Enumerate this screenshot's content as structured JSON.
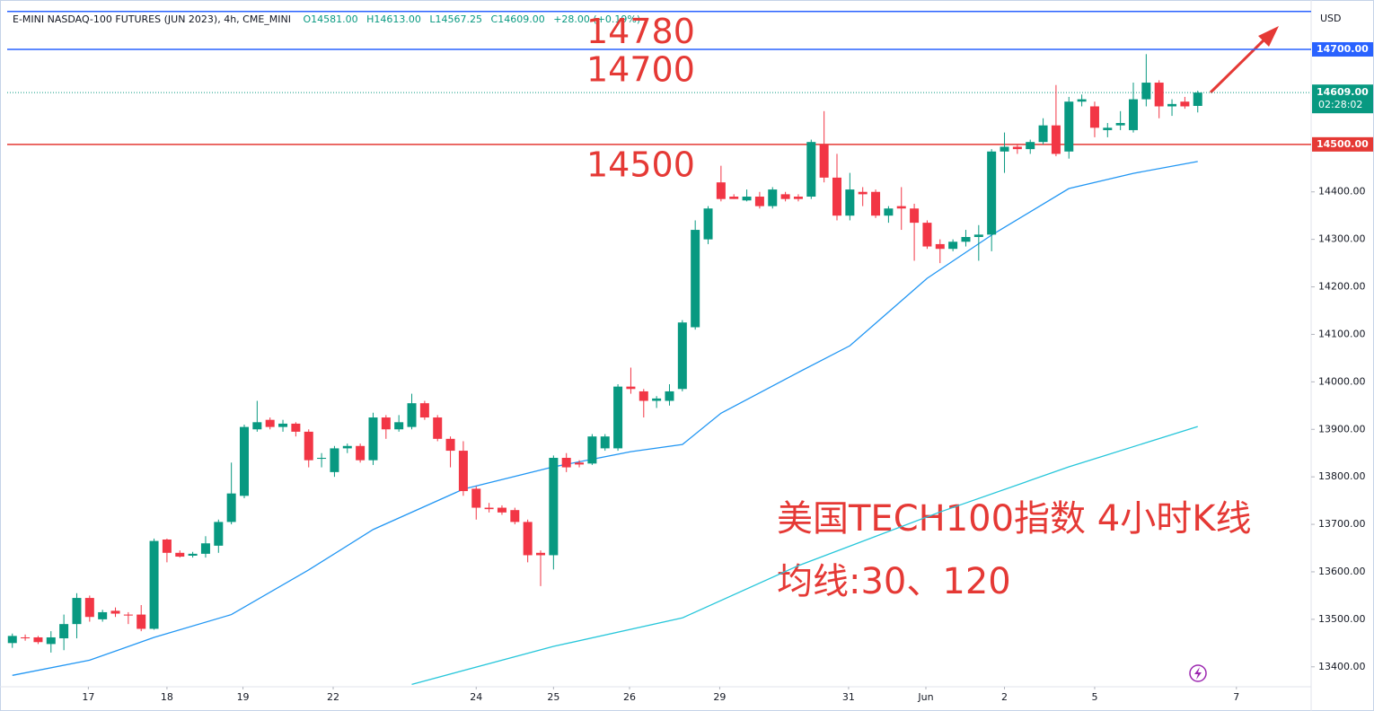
{
  "chart_data": {
    "type": "candlestick",
    "header": {
      "symbol": "E-MINI NASDAQ-100 FUTURES (JUN 2023), 4h, CME_MINI",
      "open": "O14581.00",
      "high": "H14613.00",
      "low": "L14567.25",
      "close": "C14609.00",
      "change": "+28.00 (+0.19%)"
    },
    "currency": "USD",
    "annotations": [
      "美国TECH100指数 4小时K线",
      "均线:30、120"
    ],
    "up_color": "#089981",
    "down_color": "#f23645",
    "xlim": [
      -0.4,
      100.8
    ],
    "ylim": [
      13358,
      14804
    ],
    "grid": false,
    "xticks": [
      {
        "value": 5.9,
        "label": "17"
      },
      {
        "value": 12,
        "label": "18"
      },
      {
        "value": 17.9,
        "label": "19"
      },
      {
        "value": 24.9,
        "label": "22"
      },
      {
        "value": 36,
        "label": "24"
      },
      {
        "value": 42,
        "label": "25"
      },
      {
        "value": 47.9,
        "label": "26"
      },
      {
        "value": 54.9,
        "label": "29"
      },
      {
        "value": 64.9,
        "label": "31"
      },
      {
        "value": 70.9,
        "label": "Jun"
      },
      {
        "value": 77,
        "label": "2"
      },
      {
        "value": 84,
        "label": "5"
      },
      {
        "value": 95,
        "label": "7"
      }
    ],
    "yticks": [
      {
        "value": 13400,
        "label": "13400.00"
      },
      {
        "value": 13500,
        "label": "13500.00"
      },
      {
        "value": 13600,
        "label": "13600.00"
      },
      {
        "value": 13700,
        "label": "13700.00"
      },
      {
        "value": 13800,
        "label": "13800.00"
      },
      {
        "value": 13900,
        "label": "13900.00"
      },
      {
        "value": 14000,
        "label": "14000.00"
      },
      {
        "value": 14100,
        "label": "14100.00"
      },
      {
        "value": 14200,
        "label": "14200.00"
      },
      {
        "value": 14300,
        "label": "14300.00"
      },
      {
        "value": 14400,
        "label": "14400.00"
      }
    ],
    "open": [
      13450,
      13462,
      13462,
      13448,
      13460,
      13490,
      13545,
      13500,
      13518,
      13510,
      13510,
      13480,
      13668,
      13640,
      13634,
      13638,
      13655,
      13705,
      13760,
      13900,
      13920,
      13905,
      13912,
      13895,
      13838,
      13810,
      13860,
      13865,
      13835,
      13925,
      13900,
      13905,
      13955,
      13925,
      13880,
      13855,
      13775,
      13735,
      13735,
      13730,
      13705,
      13640,
      13635,
      13840,
      13830,
      13828,
      13860,
      13860,
      13990,
      13980,
      13960,
      13960,
      13985,
      14115,
      14300,
      14420,
      14390,
      14382,
      14390,
      14370,
      14395,
      14390,
      14390,
      14500,
      14430,
      14350,
      14400,
      14400,
      14350,
      14370,
      14365,
      14335,
      14290,
      14280,
      14295,
      14305,
      14310,
      14485,
      14495,
      14490,
      14505,
      14540,
      14485,
      14590,
      14580,
      14530,
      14540,
      14530,
      14595,
      14630,
      14580,
      14590,
      14581
    ],
    "high": [
      13470,
      13468,
      13465,
      13475,
      13510,
      13555,
      13550,
      13520,
      13525,
      13515,
      13530,
      13670,
      13670,
      13645,
      13642,
      13675,
      13710,
      13830,
      13910,
      13960,
      13925,
      13920,
      13915,
      13900,
      13850,
      13865,
      13870,
      13870,
      13935,
      13930,
      13930,
      13975,
      13960,
      13930,
      13885,
      13875,
      13780,
      13745,
      13740,
      13735,
      13710,
      13645,
      13845,
      13850,
      13835,
      13890,
      13890,
      13995,
      14030,
      13985,
      13970,
      13995,
      14130,
      14340,
      14370,
      14455,
      14395,
      14405,
      14400,
      14410,
      14400,
      14395,
      14510,
      14570,
      14480,
      14440,
      14410,
      14405,
      14370,
      14410,
      14375,
      14340,
      14300,
      14300,
      14320,
      14330,
      14490,
      14525,
      14500,
      14510,
      14555,
      14625,
      14600,
      14605,
      14590,
      14545,
      14570,
      14630,
      14690,
      14635,
      14595,
      14600,
      14613
    ],
    "low": [
      13440,
      13455,
      13448,
      13430,
      13435,
      13460,
      13495,
      13495,
      13505,
      13490,
      13475,
      13478,
      13620,
      13630,
      13630,
      13630,
      13640,
      13700,
      13755,
      13895,
      13900,
      13895,
      13885,
      13820,
      13820,
      13800,
      13850,
      13830,
      13825,
      13880,
      13895,
      13900,
      13920,
      13875,
      13820,
      13760,
      13710,
      13725,
      13720,
      13700,
      13620,
      13570,
      13605,
      13810,
      13820,
      13825,
      13855,
      13855,
      13975,
      13925,
      13945,
      13950,
      13980,
      14110,
      14290,
      14380,
      14385,
      14380,
      14365,
      14365,
      14380,
      14380,
      14385,
      14420,
      14340,
      14340,
      14370,
      14345,
      14335,
      14320,
      14255,
      14280,
      14250,
      14275,
      14285,
      14255,
      14275,
      14440,
      14480,
      14480,
      14500,
      14475,
      14470,
      14580,
      14515,
      14515,
      14530,
      14525,
      14580,
      14555,
      14560,
      14575,
      14567.25
    ],
    "close": [
      13465,
      13460,
      13452,
      13462,
      13490,
      13545,
      13505,
      13515,
      13512,
      13508,
      13480,
      13665,
      13640,
      13632,
      13638,
      13660,
      13705,
      13765,
      13905,
      13915,
      13905,
      13912,
      13895,
      13835,
      13840,
      13860,
      13865,
      13835,
      13925,
      13900,
      13915,
      13955,
      13925,
      13880,
      13855,
      13770,
      13735,
      13732,
      13725,
      13705,
      13635,
      13635,
      13840,
      13820,
      13826,
      13885,
      13885,
      13990,
      13985,
      13960,
      13965,
      13980,
      14125,
      14320,
      14365,
      14385,
      14385,
      14390,
      14370,
      14405,
      14385,
      14385,
      14505,
      14430,
      14350,
      14405,
      14395,
      14350,
      14365,
      14365,
      14335,
      14285,
      14280,
      14295,
      14305,
      14310,
      14485,
      14495,
      14490,
      14505,
      14540,
      14480,
      14590,
      14595,
      14535,
      14535,
      14545,
      14595,
      14630,
      14580,
      14585,
      14580,
      14609
    ],
    "series": [
      {
        "name": "MA30",
        "color": "#2196f3",
        "x": [
          0,
          6,
          11,
          17,
          23,
          28,
          35,
          42,
          48,
          52,
          55,
          61,
          65,
          71,
          76,
          82,
          87,
          92
        ],
        "values": [
          13382,
          13414,
          13462,
          13510,
          13604,
          13689,
          13774,
          13821,
          13853,
          13868,
          13934,
          14020,
          14076,
          14218,
          14309,
          14407,
          14439,
          14464
        ]
      },
      {
        "name": "MA120",
        "color": "#26c6da",
        "x": [
          31,
          42,
          52,
          61,
          72,
          82,
          92
        ],
        "values": [
          13363,
          13443,
          13503,
          13613,
          13726,
          13821,
          13906
        ]
      }
    ],
    "price_lines": [
      {
        "value": 14780,
        "color": "#2962ff",
        "annotation": "14780"
      },
      {
        "value": 14700,
        "color": "#2962ff",
        "label": "14700.00",
        "annotation": "14700"
      },
      {
        "value": 14500,
        "color": "#e53935",
        "label": "14500.00",
        "annotation": "14500"
      }
    ],
    "last_price": {
      "value": 14609,
      "label": "14609.00",
      "countdown": "02:28:02",
      "color": "#089981"
    }
  }
}
